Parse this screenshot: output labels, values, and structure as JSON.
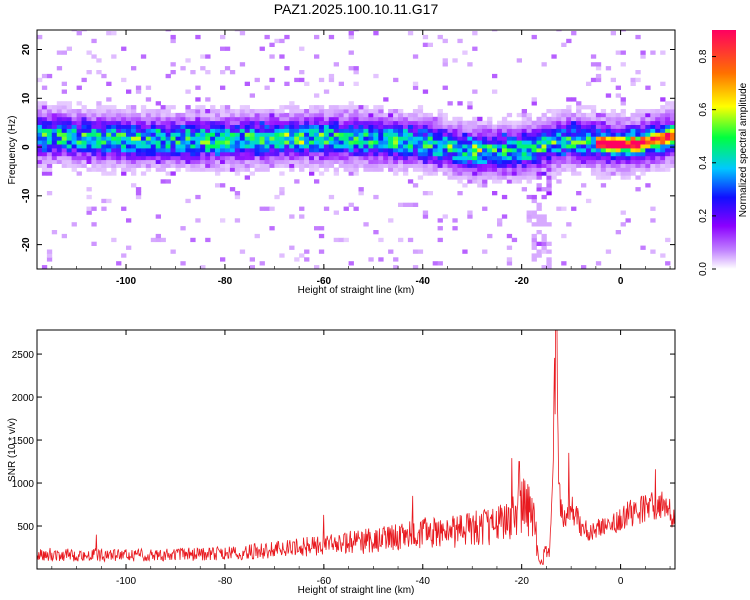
{
  "figure": {
    "title": "PAZ1.2025.100.10.11.G17"
  },
  "chart_data": [
    {
      "type": "heatmap",
      "title": "PAZ1.2025.100.10.11.G17",
      "xlabel": "Height of straight line (km)",
      "ylabel": "Frequency (Hz)",
      "xlim": [
        -118,
        11
      ],
      "ylim": [
        -25,
        24
      ],
      "xticks": [
        -100,
        -80,
        -60,
        -40,
        -20,
        0
      ],
      "yticks": [
        -20,
        -10,
        0,
        10,
        20
      ],
      "colorbar": {
        "label": "Normalized spectral amplitude",
        "range": [
          0,
          0.9
        ],
        "ticks": [
          0.0,
          0.2,
          0.4,
          0.6,
          0.8
        ],
        "colors": [
          "#ffffff",
          "#8b00ff",
          "#1010ff",
          "#00c8ff",
          "#00ff40",
          "#ffff00",
          "#ff7000",
          "#ff0060"
        ]
      },
      "ridge": {
        "description_points_x": [
          -118,
          -100,
          -80,
          -60,
          -40,
          -30,
          -20,
          -10,
          -5,
          0,
          5,
          11
        ],
        "center_frequency": [
          2.5,
          1.5,
          1.5,
          2.0,
          1.0,
          -1.0,
          -0.5,
          1.5,
          1.0,
          0.5,
          1.0,
          2.5
        ]
      },
      "peak": {
        "x": -2,
        "y": 0.8,
        "value": 0.9
      }
    },
    {
      "type": "line",
      "xlabel": "Height of straight line (km)",
      "ylabel": "SNR (10 * v/v)",
      "xlim": [
        -118,
        11
      ],
      "ylim": [
        0,
        2780
      ],
      "xticks": [
        -100,
        -80,
        -60,
        -40,
        -20,
        0
      ],
      "yticks": [
        500,
        1000,
        1500,
        2000,
        2500
      ],
      "color": "#e8191f",
      "series": [
        {
          "x": [
            -118,
            -110,
            -100,
            -90,
            -80,
            -70,
            -60,
            -50,
            -45,
            -40,
            -35,
            -30,
            -25,
            -22,
            -20,
            -18,
            -16,
            -15,
            -14,
            -13.5,
            -13,
            -12.5,
            -12,
            -11,
            -10,
            -8,
            -6,
            -5,
            -4,
            -2,
            0,
            2,
            4,
            6,
            8,
            10,
            11
          ],
          "values": [
            180,
            160,
            160,
            170,
            180,
            220,
            280,
            330,
            380,
            420,
            430,
            460,
            520,
            620,
            750,
            650,
            200,
            180,
            500,
            1900,
            2780,
            1200,
            600,
            650,
            700,
            500,
            420,
            450,
            500,
            520,
            600,
            650,
            700,
            720,
            750,
            650,
            620
          ]
        }
      ],
      "spikes": [
        {
          "x": -106,
          "y": 400
        },
        {
          "x": -60,
          "y": 630
        },
        {
          "x": -42,
          "y": 850
        },
        {
          "x": -22,
          "y": 1290
        },
        {
          "x": -20.5,
          "y": 1250
        },
        {
          "x": -13,
          "y": 2780
        },
        {
          "x": -10.5,
          "y": 1350
        },
        {
          "x": 7,
          "y": 1160
        }
      ]
    }
  ]
}
